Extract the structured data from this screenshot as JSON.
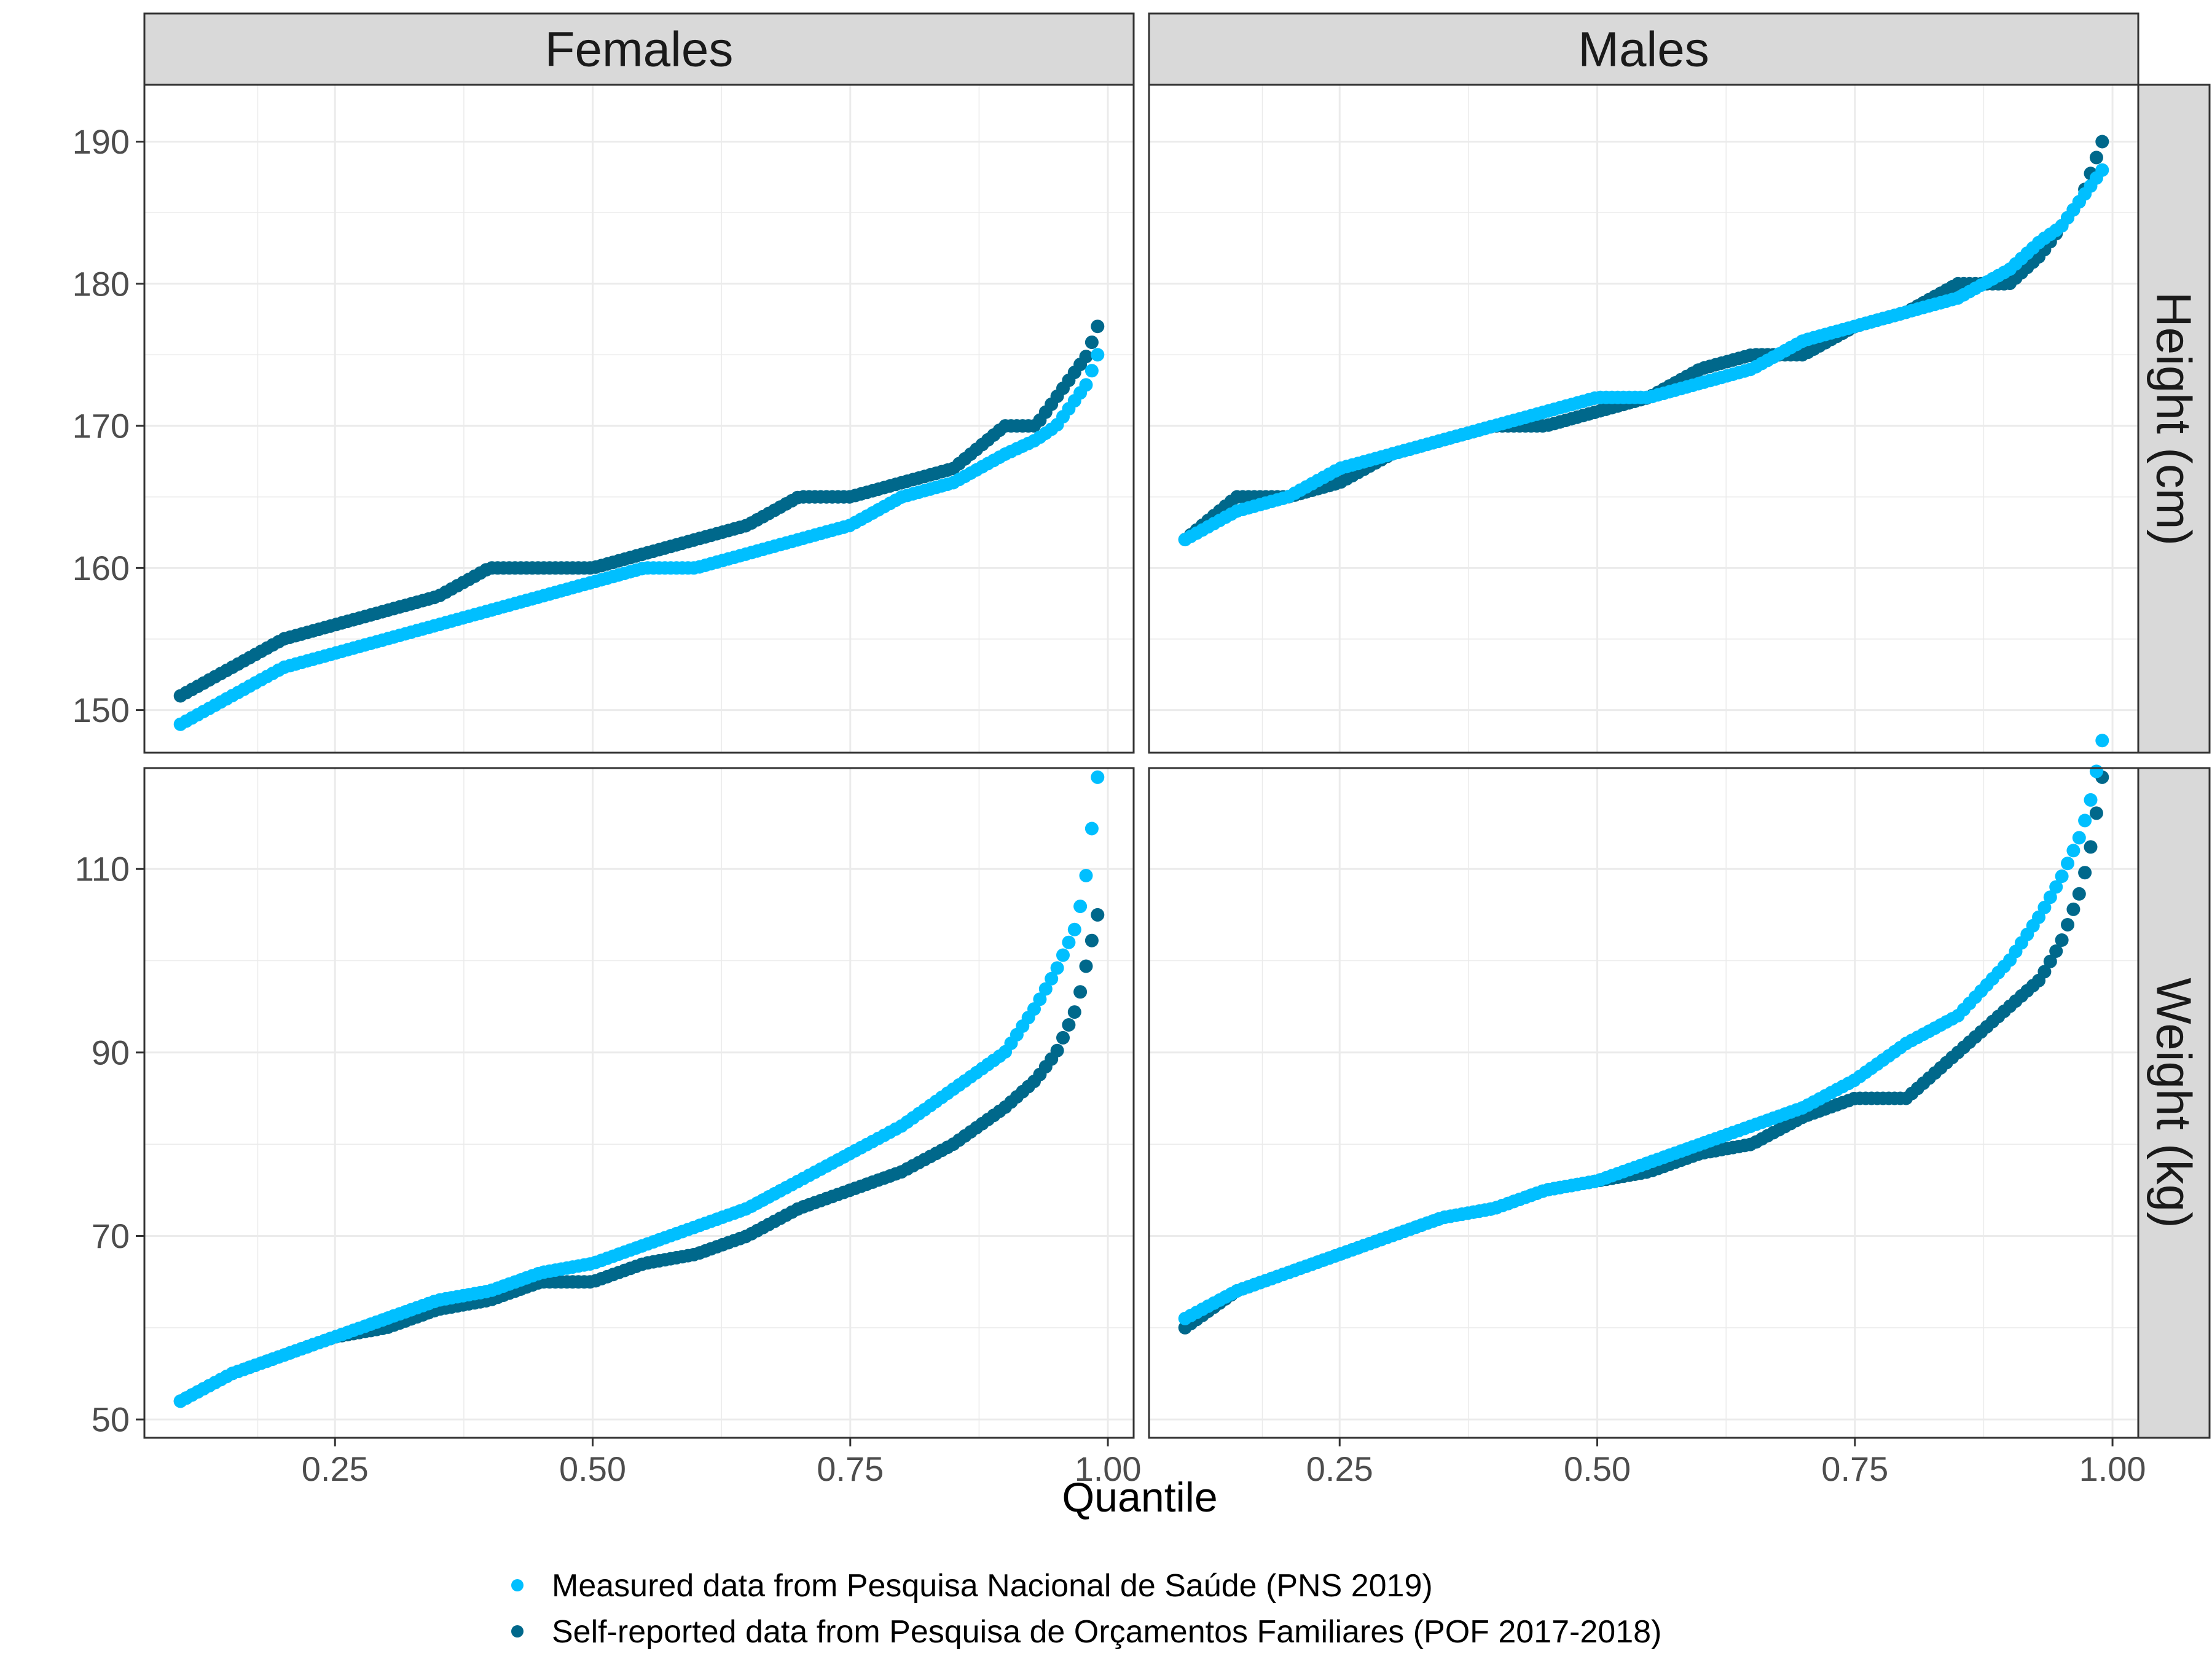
{
  "chart_data": {
    "type": "scatter",
    "xlabel": "Quantile",
    "facet_columns": [
      "Females",
      "Males"
    ],
    "facet_rows": [
      "Height (cm)",
      "Weight (kg)"
    ],
    "xlim": [
      0.1,
      0.99
    ],
    "x_ticks": [
      "0.25",
      "0.50",
      "0.75",
      "1.00"
    ],
    "x_tick_values": [
      0.25,
      0.5,
      0.75,
      1.0
    ],
    "row_ylims": [
      [
        147,
        194
      ],
      [
        48,
        121
      ]
    ],
    "row_y_ticks": [
      [
        "150",
        "160",
        "170",
        "180",
        "190"
      ],
      [
        "50",
        "70",
        "90",
        "110"
      ]
    ],
    "row_y_tick_values": [
      [
        150,
        160,
        170,
        180,
        190
      ],
      [
        50,
        70,
        90,
        110
      ]
    ],
    "grid": true,
    "legend_position": "bottom",
    "legend": [
      "Measured data from Pesquisa Nacional de Saúde (PNS 2019)",
      "Self-reported data from Pesquisa de Orçamentos Familiares (POF 2017-2018)"
    ],
    "colors": {
      "measured": "#00bfff",
      "self_reported": "#00688b",
      "strip_fill": "#d9d9d9",
      "grid": "#ebebeb",
      "panel_border": "#333333"
    },
    "panels": [
      {
        "column": "Females",
        "row": "Height (cm)",
        "series": [
          {
            "name": "Measured data from Pesquisa Nacional de Saúde (PNS 2019)",
            "x": [
              0.1,
              0.15,
              0.2,
              0.25,
              0.3,
              0.35,
              0.4,
              0.45,
              0.5,
              0.55,
              0.6,
              0.65,
              0.7,
              0.75,
              0.8,
              0.85,
              0.9,
              0.93,
              0.95,
              0.97,
              0.98,
              0.99
            ],
            "y": [
              149,
              151,
              153,
              154,
              155,
              156,
              157,
              158,
              159,
              160,
              160,
              161,
              162,
              163,
              165,
              166,
              168,
              169,
              170,
              172,
              173,
              175
            ]
          },
          {
            "name": "Self-reported data from Pesquisa de Orçamentos Familiares (POF 2017-2018)",
            "x": [
              0.1,
              0.15,
              0.2,
              0.25,
              0.3,
              0.35,
              0.4,
              0.45,
              0.5,
              0.55,
              0.6,
              0.65,
              0.7,
              0.75,
              0.8,
              0.85,
              0.9,
              0.93,
              0.95,
              0.97,
              0.98,
              0.99
            ],
            "y": [
              151,
              153,
              155,
              156,
              157,
              158,
              160,
              160,
              160,
              161,
              162,
              163,
              165,
              165,
              166,
              167,
              170,
              170,
              172,
              174,
              175,
              177
            ]
          }
        ]
      },
      {
        "column": "Males",
        "row": "Height (cm)",
        "series": [
          {
            "name": "Measured data from Pesquisa Nacional de Saúde (PNS 2019)",
            "x": [
              0.1,
              0.15,
              0.2,
              0.25,
              0.3,
              0.35,
              0.4,
              0.45,
              0.5,
              0.55,
              0.6,
              0.65,
              0.7,
              0.75,
              0.8,
              0.85,
              0.9,
              0.93,
              0.95,
              0.97,
              0.98,
              0.99
            ],
            "y": [
              162,
              164,
              165,
              167,
              168,
              169,
              170,
              171,
              172,
              172,
              173,
              174,
              176,
              177,
              178,
              179,
              181,
              183,
              184,
              186,
              187,
              188
            ]
          },
          {
            "name": "Self-reported data from Pesquisa de Orçamentos Familiares (POF 2017-2018)",
            "x": [
              0.1,
              0.15,
              0.2,
              0.25,
              0.3,
              0.35,
              0.4,
              0.45,
              0.5,
              0.55,
              0.6,
              0.65,
              0.7,
              0.75,
              0.8,
              0.85,
              0.9,
              0.93,
              0.95,
              0.97,
              0.98,
              0.99
            ],
            "y": [
              162,
              165,
              165,
              166,
              168,
              169,
              170,
              170,
              171,
              172,
              174,
              175,
              175,
              177,
              178,
              180,
              180,
              182,
              184,
              186,
              188,
              190
            ]
          }
        ]
      },
      {
        "column": "Females",
        "row": "Weight (kg)",
        "series": [
          {
            "name": "Measured data from Pesquisa Nacional de Saúde (PNS 2019)",
            "x": [
              0.1,
              0.15,
              0.2,
              0.25,
              0.3,
              0.35,
              0.4,
              0.45,
              0.5,
              0.55,
              0.6,
              0.65,
              0.7,
              0.75,
              0.8,
              0.85,
              0.9,
              0.93,
              0.95,
              0.97,
              0.98,
              0.99
            ],
            "y": [
              52,
              55,
              57,
              59,
              61,
              63,
              64,
              66,
              67,
              69,
              71,
              73,
              76,
              79,
              82,
              86,
              90,
              95,
              99,
              104,
              110,
              120
            ]
          },
          {
            "name": "Self-reported data from Pesquisa de Orçamentos Familiares (POF 2017-2018)",
            "x": [
              0.1,
              0.15,
              0.2,
              0.25,
              0.3,
              0.35,
              0.4,
              0.45,
              0.5,
              0.55,
              0.6,
              0.65,
              0.7,
              0.75,
              0.8,
              0.85,
              0.9,
              0.93,
              0.95,
              0.97,
              0.98,
              0.99
            ],
            "y": [
              52,
              55,
              57,
              59,
              60,
              62,
              63,
              65,
              65,
              67,
              68,
              70,
              73,
              75,
              77,
              80,
              84,
              87,
              90,
              95,
              100,
              105
            ]
          }
        ]
      },
      {
        "column": "Males",
        "row": "Weight (kg)",
        "series": [
          {
            "name": "Measured data from Pesquisa Nacional de Saúde (PNS 2019)",
            "x": [
              0.1,
              0.15,
              0.2,
              0.25,
              0.3,
              0.35,
              0.4,
              0.45,
              0.5,
              0.55,
              0.6,
              0.65,
              0.7,
              0.75,
              0.8,
              0.85,
              0.9,
              0.93,
              0.95,
              0.97,
              0.98,
              0.99
            ],
            "y": [
              61,
              64,
              66,
              68,
              70,
              72,
              73,
              75,
              76,
              78,
              80,
              82,
              84,
              87,
              91,
              94,
              100,
              105,
              109,
              114,
              118,
              124
            ]
          },
          {
            "name": "Self-reported data from Pesquisa de Orçamentos Familiares (POF 2017-2018)",
            "x": [
              0.1,
              0.15,
              0.2,
              0.25,
              0.3,
              0.35,
              0.4,
              0.45,
              0.5,
              0.55,
              0.6,
              0.65,
              0.7,
              0.75,
              0.8,
              0.85,
              0.9,
              0.93,
              0.95,
              0.97,
              0.98,
              0.99
            ],
            "y": [
              60,
              64,
              66,
              68,
              70,
              72,
              73,
              75,
              76,
              77,
              79,
              80,
              83,
              85,
              85,
              90,
              95,
              98,
              102,
              108,
              113,
              120
            ]
          }
        ]
      }
    ]
  }
}
